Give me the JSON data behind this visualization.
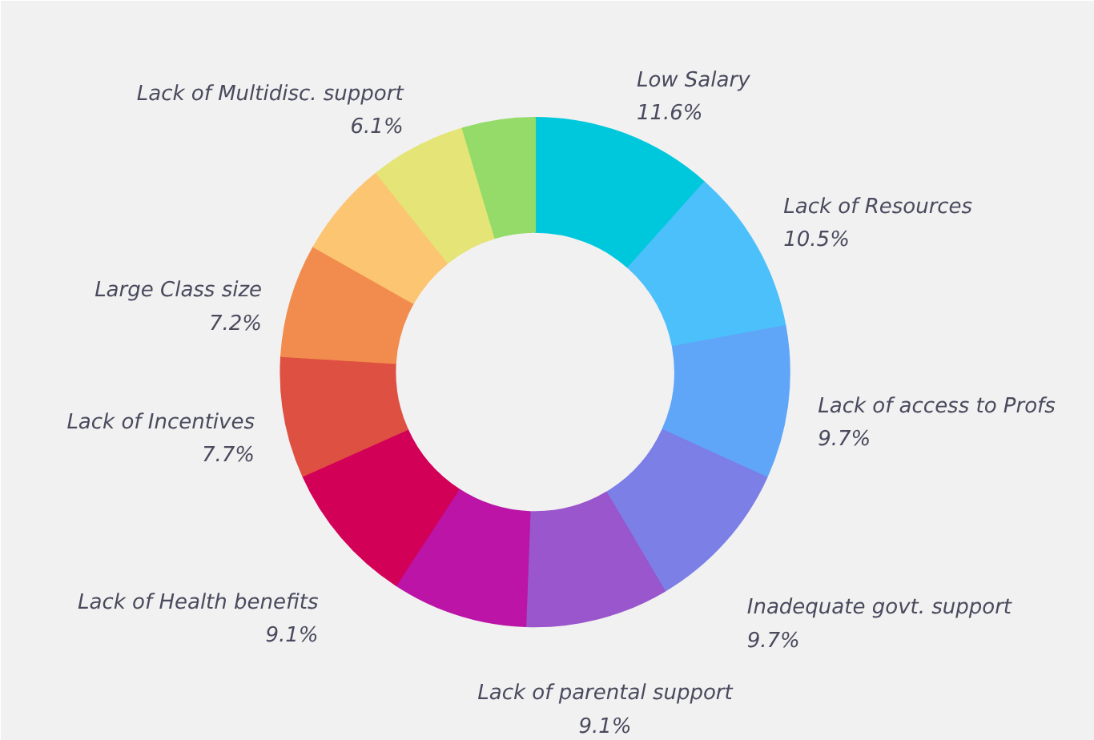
{
  "chart_data": {
    "type": "donut",
    "categories": [
      "Low Salary",
      "Lack of Resources",
      "Lack of access to Profs",
      "Inadequate govt. support",
      "Lack of parental support",
      null,
      "Lack of Health benefits",
      "Lack of Incentives",
      "Large Class size",
      null,
      "Lack of Multidisc. support",
      null
    ],
    "values": [
      11.6,
      10.5,
      9.7,
      9.7,
      9.1,
      8.6,
      9.1,
      7.7,
      7.2,
      6.1,
      6.1,
      4.6
    ],
    "value_labels": [
      "11.6%",
      "10.5%",
      "9.7%",
      "9.7%",
      "9.1%",
      null,
      "9.1%",
      "7.7%",
      "7.2%",
      null,
      "6.1%",
      null
    ],
    "colors": [
      "#00c8dc",
      "#4cc0fa",
      "#60a6f8",
      "#7b7fe6",
      "#9a56cc",
      "#bb14a6",
      "#d30058",
      "#de5042",
      "#f28c4e",
      "#fcc572",
      "#e5e477",
      "#94db6a"
    ]
  }
}
